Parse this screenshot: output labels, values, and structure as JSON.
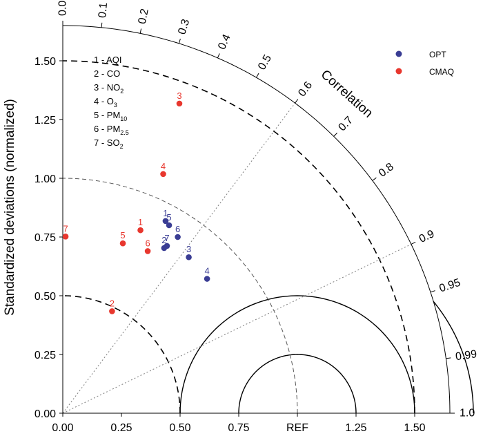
{
  "chart_data": {
    "type": "scatter",
    "subtype": "taylor-diagram",
    "ylabel": "Standardized deviations (normalized)",
    "corr_title": "Correlation",
    "x_ticks": [
      {
        "value": 0.0,
        "label": "0.00"
      },
      {
        "value": 0.25,
        "label": "0.25"
      },
      {
        "value": 0.5,
        "label": "0.50"
      },
      {
        "value": 0.75,
        "label": "0.75"
      },
      {
        "value": 1.0,
        "label": "REF"
      },
      {
        "value": 1.25,
        "label": "1.25"
      },
      {
        "value": 1.5,
        "label": "1.50"
      }
    ],
    "y_ticks": [
      {
        "value": 0.0,
        "label": "0.00"
      },
      {
        "value": 0.25,
        "label": "0.25"
      },
      {
        "value": 0.5,
        "label": "0.50"
      },
      {
        "value": 0.75,
        "label": "0.75"
      },
      {
        "value": 1.0,
        "label": "1.00"
      },
      {
        "value": 1.25,
        "label": "1.25"
      },
      {
        "value": 1.5,
        "label": "1.50"
      }
    ],
    "corr_ticks": [
      "0.0",
      "0.1",
      "0.2",
      "0.3",
      "0.4",
      "0.5",
      "0.6",
      "0.7",
      "0.8",
      "0.9",
      "0.95",
      "0.99",
      "1.0"
    ],
    "std_max": 1.65,
    "rms_circles": [
      0.25,
      0.5,
      0.75
    ],
    "ref_dashed_arcs": [
      0.5,
      1.5
    ],
    "std_dashed_arc": 1.0,
    "corr_ref_lines": [
      0.6,
      0.9
    ],
    "variables": [
      {
        "id": "1",
        "name": "AQI",
        "sub": ""
      },
      {
        "id": "2",
        "name": "CO",
        "sub": ""
      },
      {
        "id": "3",
        "name": "NO",
        "sub": "2"
      },
      {
        "id": "4",
        "name": "O",
        "sub": "3"
      },
      {
        "id": "5",
        "name": "PM",
        "sub": "10"
      },
      {
        "id": "6",
        "name": "PM",
        "sub": "2.5"
      },
      {
        "id": "7",
        "name": "SO",
        "sub": "2"
      }
    ],
    "series": [
      {
        "name": "OPT",
        "color": "#3a3d94",
        "points": [
          {
            "label": "1",
            "x": 0.438,
            "y": 0.818
          },
          {
            "label": "5",
            "x": 0.453,
            "y": 0.8
          },
          {
            "label": "6",
            "x": 0.49,
            "y": 0.75
          },
          {
            "label": "7",
            "x": 0.444,
            "y": 0.712
          },
          {
            "label": "2",
            "x": 0.432,
            "y": 0.703
          },
          {
            "label": "3",
            "x": 0.537,
            "y": 0.664
          },
          {
            "label": "4",
            "x": 0.615,
            "y": 0.572
          }
        ]
      },
      {
        "name": "CMAQ",
        "color": "#e8372e",
        "points": [
          {
            "label": "3",
            "x": 0.497,
            "y": 1.318
          },
          {
            "label": "4",
            "x": 0.428,
            "y": 1.018
          },
          {
            "label": "1",
            "x": 0.331,
            "y": 0.779
          },
          {
            "label": "5",
            "x": 0.256,
            "y": 0.723
          },
          {
            "label": "6",
            "x": 0.362,
            "y": 0.69
          },
          {
            "label": "7",
            "x": 0.012,
            "y": 0.752
          },
          {
            "label": "2",
            "x": 0.21,
            "y": 0.434
          }
        ]
      }
    ]
  }
}
